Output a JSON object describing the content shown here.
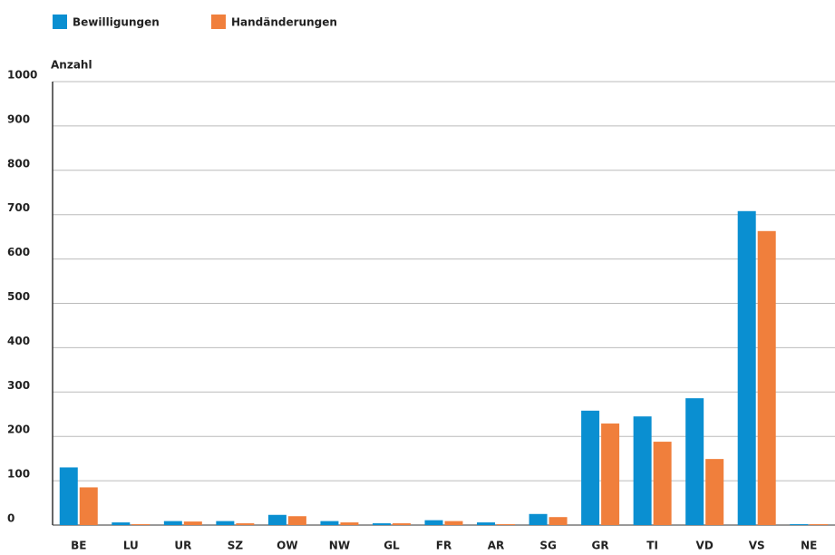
{
  "chart_data": {
    "type": "bar",
    "y_label": "Anzahl",
    "categories": [
      "BE",
      "LU",
      "UR",
      "SZ",
      "OW",
      "NW",
      "GL",
      "FR",
      "AR",
      "SG",
      "GR",
      "TI",
      "VD",
      "VS",
      "NE"
    ],
    "series": [
      {
        "name": "Bewilligungen",
        "color": "#0a8fd1",
        "values": [
          130,
          6,
          9,
          9,
          23,
          9,
          4,
          11,
          6,
          25,
          258,
          245,
          286,
          708,
          2
        ]
      },
      {
        "name": "Handänderungen",
        "color": "#f07f3c",
        "values": [
          85,
          2,
          8,
          4,
          20,
          6,
          4,
          9,
          2,
          18,
          229,
          188,
          149,
          663,
          2
        ]
      }
    ],
    "ylim": [
      0,
      1000
    ],
    "yticks": [
      0,
      100,
      200,
      300,
      400,
      500,
      600,
      700,
      800,
      900,
      1000
    ],
    "grid": true
  }
}
